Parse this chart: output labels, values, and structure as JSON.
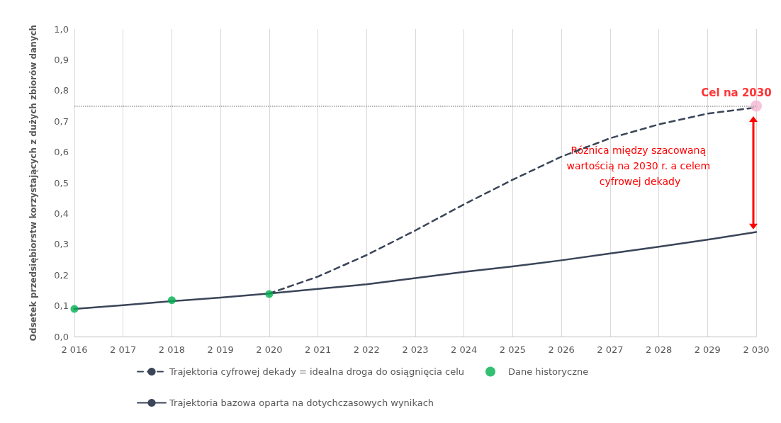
{
  "chart_data": {
    "type": "line",
    "ylabel": "Odsetek przedsiębiorstw korzystających z dużych zbiorów danych",
    "xlim": [
      2016,
      2030
    ],
    "xticks": [
      {
        "value": 2016,
        "label": "2 016"
      },
      {
        "value": 2017,
        "label": "2 017"
      },
      {
        "value": 2018,
        "label": "2 018"
      },
      {
        "value": 2019,
        "label": "2 019"
      },
      {
        "value": 2020,
        "label": "2 020"
      },
      {
        "value": 2021,
        "label": "2 021"
      },
      {
        "value": 2022,
        "label": "2 022"
      },
      {
        "value": 2023,
        "label": "2 023"
      },
      {
        "value": 2024,
        "label": "2 024"
      },
      {
        "value": 2025,
        "label": "2 025"
      },
      {
        "value": 2026,
        "label": "2 026"
      },
      {
        "value": 2027,
        "label": "2 027"
      },
      {
        "value": 2028,
        "label": "2 028"
      },
      {
        "value": 2029,
        "label": "2 029"
      },
      {
        "value": 2030,
        "label": "2 030"
      }
    ],
    "ylim": [
      0,
      1
    ],
    "yticks": [
      {
        "value": 0,
        "label": "0,0"
      },
      {
        "value": 0.1,
        "label": "0,1"
      },
      {
        "value": 0.2,
        "label": "0,2"
      },
      {
        "value": 0.3,
        "label": "0,3"
      },
      {
        "value": 0.4,
        "label": "0,4"
      },
      {
        "value": 0.5,
        "label": "0,5"
      },
      {
        "value": 0.6,
        "label": "0,6"
      },
      {
        "value": 0.7,
        "label": "0,7"
      },
      {
        "value": 0.8,
        "label": "0,8"
      },
      {
        "value": 0.9,
        "label": "0,9"
      },
      {
        "value": 1,
        "label": "1,0"
      }
    ],
    "grid": "x",
    "legend": "bottom",
    "series": [
      {
        "name": "Trajektoria cyfrowej dekady = idealna droga do osiągnięcia celu",
        "line_style": "dashed",
        "marker": "none",
        "color": "#3a4558",
        "x": [
          2020,
          2021,
          2022,
          2023,
          2024,
          2025,
          2026,
          2027,
          2028,
          2029,
          2030
        ],
        "values": [
          0.14,
          0.195,
          0.265,
          0.345,
          0.43,
          0.51,
          0.585,
          0.645,
          0.69,
          0.725,
          0.745
        ]
      },
      {
        "name": "Dane historyczne",
        "type": "scatter",
        "marker": "circle",
        "color": "#00b050",
        "x": [
          2016,
          2018,
          2020
        ],
        "values": [
          0.09,
          0.118,
          0.138
        ]
      },
      {
        "name": "Trajektoria bazowa oparta na dotychczasowych wynikach",
        "line_style": "solid",
        "marker": "none",
        "color": "#3a4558",
        "x": [
          2016,
          2017,
          2018,
          2019,
          2020,
          2021,
          2022,
          2023,
          2024,
          2025,
          2026,
          2027,
          2028,
          2029,
          2030
        ],
        "values": [
          0.09,
          0.102,
          0.115,
          0.127,
          0.14,
          0.155,
          0.17,
          0.19,
          0.21,
          0.228,
          0.248,
          0.27,
          0.292,
          0.315,
          0.34
        ]
      },
      {
        "type": "scatter",
        "marker": "circle",
        "color": "#f4b6d2",
        "x": [
          2030
        ],
        "values": [
          0.75
        ]
      }
    ],
    "ref_lines": [
      {
        "axis": "y",
        "value": 0.75,
        "color": "#999999",
        "line_style": "dotted"
      }
    ],
    "annotations": [
      {
        "text": "Cel na 2030",
        "x": 2030,
        "y": 0.75
      },
      "Różnica między szacowaną wartością na 2030 r. a celem cyfrowej dekady"
    ]
  }
}
